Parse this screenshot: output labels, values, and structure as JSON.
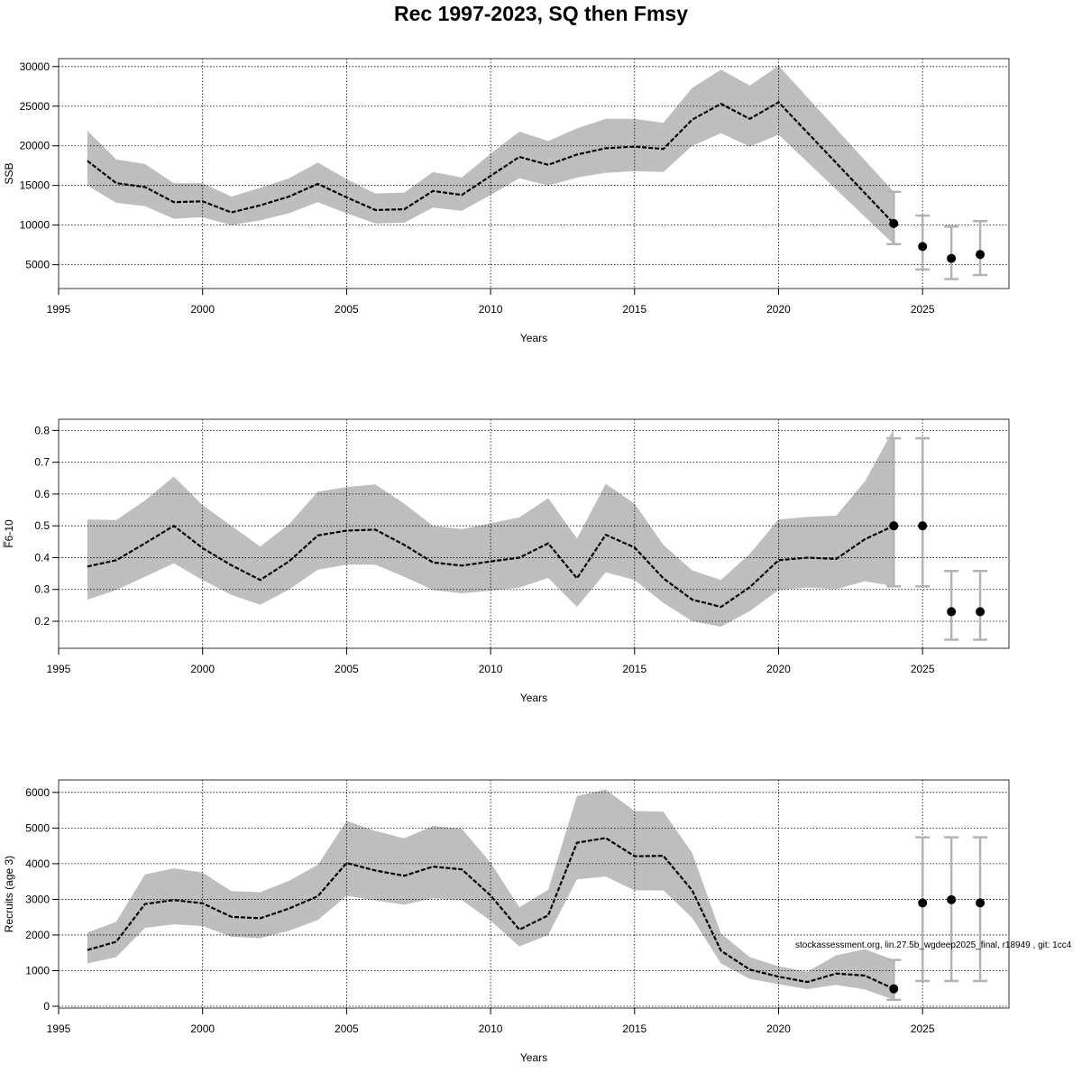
{
  "title": "Rec 1997-2023, SQ then Fmsy",
  "watermark": "stockassessment.org, lin.27.5b_wgdeep2025_final, r18949 , git: 1cc4",
  "colors": {
    "band": "#bebebe",
    "line": "#000000",
    "forecast_bar": "#b3b3b3",
    "grid": "#000000"
  },
  "chart_data": [
    {
      "type": "line",
      "ylabel": "SSB",
      "xlabel": "Years",
      "xlim": [
        1995,
        2028
      ],
      "ylim": [
        2000,
        31000
      ],
      "x_ticks": [
        1995,
        2000,
        2005,
        2010,
        2015,
        2020,
        2025
      ],
      "x_tick_labels": [
        "1995",
        "2000",
        "2005",
        "2010",
        "2015",
        "2020",
        "2025"
      ],
      "y_ticks": [
        5000,
        10000,
        15000,
        20000,
        25000,
        30000
      ],
      "y_tick_labels": [
        "5000",
        "10000",
        "15000",
        "20000",
        "25000",
        "30000"
      ],
      "grid": true,
      "series": [
        {
          "x": [
            1996,
            1997,
            1998,
            1999,
            2000,
            2001,
            2002,
            2003,
            2004,
            2005,
            2006,
            2007,
            2008,
            2009,
            2010,
            2011,
            2012,
            2013,
            2014,
            2015,
            2016,
            2017,
            2018,
            2019,
            2020,
            2024
          ],
          "y": [
            18100,
            15300,
            14800,
            12900,
            13000,
            11600,
            12500,
            13600,
            15200,
            13500,
            11900,
            12000,
            14300,
            13800,
            16200,
            18600,
            17600,
            18900,
            19700,
            19900,
            19600,
            23300,
            25300,
            23400,
            25500,
            10200
          ],
          "lower": [
            15000,
            12800,
            12400,
            10800,
            11000,
            10000,
            10600,
            11500,
            12900,
            11500,
            10200,
            10300,
            12200,
            11800,
            13800,
            15900,
            15000,
            16000,
            16600,
            16800,
            16700,
            20000,
            21600,
            19900,
            21400,
            7600
          ],
          "upper": [
            21900,
            18300,
            17700,
            15300,
            15300,
            13600,
            14700,
            15900,
            17900,
            15800,
            14000,
            14100,
            16700,
            16000,
            19000,
            21800,
            20600,
            22200,
            23400,
            23400,
            22900,
            27300,
            29600,
            27600,
            30100,
            14200
          ]
        }
      ],
      "forecast": [
        {
          "x": 2024,
          "y": 10200,
          "lower": 7600,
          "upper": 14200
        },
        {
          "x": 2025,
          "y": 7300,
          "lower": 4400,
          "upper": 11200
        },
        {
          "x": 2026,
          "y": 5800,
          "lower": 3200,
          "upper": 9800
        },
        {
          "x": 2027,
          "y": 6300,
          "lower": 3700,
          "upper": 10500
        }
      ]
    },
    {
      "type": "line",
      "ylabel": "F̅6-10",
      "xlabel": "Years",
      "xlim": [
        1995,
        2028
      ],
      "ylim": [
        0.115,
        0.835
      ],
      "x_ticks": [
        1995,
        2000,
        2005,
        2010,
        2015,
        2020,
        2025
      ],
      "x_tick_labels": [
        "1995",
        "2000",
        "2005",
        "2010",
        "2015",
        "2020",
        "2025"
      ],
      "y_ticks": [
        0.2,
        0.3,
        0.4,
        0.5,
        0.6,
        0.7,
        0.8
      ],
      "y_tick_labels": [
        "0.2",
        "0.3",
        "0.4",
        "0.5",
        "0.6",
        "0.7",
        "0.8"
      ],
      "grid": true,
      "series": [
        {
          "x": [
            1996,
            1997,
            1998,
            1999,
            2000,
            2001,
            2002,
            2003,
            2004,
            2005,
            2006,
            2007,
            2008,
            2009,
            2010,
            2011,
            2012,
            2013,
            2014,
            2015,
            2016,
            2017,
            2018,
            2019,
            2020,
            2021,
            2022,
            2023,
            2024
          ],
          "y": [
            0.372,
            0.392,
            0.445,
            0.5,
            0.43,
            0.376,
            0.33,
            0.388,
            0.47,
            0.485,
            0.488,
            0.44,
            0.385,
            0.375,
            0.388,
            0.4,
            0.445,
            0.335,
            0.472,
            0.432,
            0.335,
            0.268,
            0.245,
            0.307,
            0.392,
            0.4,
            0.396,
            0.458,
            0.5
          ],
          "lower": [
            0.268,
            0.298,
            0.34,
            0.382,
            0.33,
            0.283,
            0.252,
            0.3,
            0.362,
            0.378,
            0.378,
            0.34,
            0.298,
            0.288,
            0.296,
            0.306,
            0.336,
            0.245,
            0.354,
            0.33,
            0.258,
            0.2,
            0.183,
            0.232,
            0.298,
            0.306,
            0.301,
            0.326,
            0.31
          ],
          "upper": [
            0.52,
            0.518,
            0.58,
            0.655,
            0.565,
            0.5,
            0.435,
            0.505,
            0.607,
            0.622,
            0.63,
            0.57,
            0.5,
            0.49,
            0.508,
            0.527,
            0.587,
            0.46,
            0.632,
            0.57,
            0.44,
            0.36,
            0.33,
            0.412,
            0.52,
            0.528,
            0.532,
            0.64,
            0.805
          ]
        }
      ],
      "forecast": [
        {
          "x": 2024,
          "y": 0.5,
          "lower": 0.31,
          "upper": 0.775
        },
        {
          "x": 2025,
          "y": 0.5,
          "lower": 0.31,
          "upper": 0.775
        },
        {
          "x": 2026,
          "y": 0.23,
          "lower": 0.142,
          "upper": 0.358
        },
        {
          "x": 2027,
          "y": 0.23,
          "lower": 0.142,
          "upper": 0.358
        }
      ]
    },
    {
      "type": "line",
      "ylabel": "Recruits (age 3)",
      "xlabel": "Years",
      "xlim": [
        1995,
        2028
      ],
      "ylim": [
        -50,
        6350
      ],
      "x_ticks": [
        1995,
        2000,
        2005,
        2010,
        2015,
        2020,
        2025
      ],
      "x_tick_labels": [
        "1995",
        "2000",
        "2005",
        "2010",
        "2015",
        "2020",
        "2025"
      ],
      "y_ticks": [
        0,
        1000,
        2000,
        3000,
        4000,
        5000,
        6000
      ],
      "y_tick_labels": [
        "0",
        "1000",
        "2000",
        "3000",
        "4000",
        "5000",
        "6000"
      ],
      "grid": true,
      "series": [
        {
          "x": [
            1996,
            1997,
            1998,
            1999,
            2000,
            2001,
            2002,
            2003,
            2004,
            2005,
            2006,
            2007,
            2008,
            2009,
            2010,
            2011,
            2012,
            2013,
            2014,
            2015,
            2016,
            2017,
            2018,
            2019,
            2020,
            2021,
            2022,
            2023,
            2024
          ],
          "y": [
            1580,
            1810,
            2870,
            2980,
            2890,
            2510,
            2470,
            2740,
            3090,
            4020,
            3810,
            3660,
            3920,
            3840,
            3110,
            2150,
            2550,
            4590,
            4720,
            4210,
            4220,
            3250,
            1560,
            1030,
            830,
            680,
            920,
            860,
            490
          ],
          "lower": [
            1200,
            1380,
            2200,
            2300,
            2250,
            1950,
            1910,
            2120,
            2420,
            3100,
            2970,
            2850,
            3030,
            2980,
            2400,
            1680,
            2000,
            3560,
            3640,
            3250,
            3250,
            2480,
            1200,
            770,
            620,
            480,
            600,
            470,
            180
          ],
          "upper": [
            2070,
            2370,
            3700,
            3870,
            3750,
            3230,
            3200,
            3520,
            3970,
            5200,
            4920,
            4710,
            5060,
            4980,
            4030,
            2780,
            3270,
            5900,
            6080,
            5480,
            5460,
            4300,
            2040,
            1380,
            1120,
            970,
            1430,
            1600,
            1300
          ]
        }
      ],
      "forecast": [
        {
          "x": 2024,
          "y": 490,
          "lower": 180,
          "upper": 1300
        },
        {
          "x": 2025,
          "y": 2900,
          "lower": 710,
          "upper": 4740
        },
        {
          "x": 2026,
          "y": 2990,
          "lower": 710,
          "upper": 4740
        },
        {
          "x": 2027,
          "y": 2900,
          "lower": 710,
          "upper": 4740
        }
      ]
    }
  ]
}
